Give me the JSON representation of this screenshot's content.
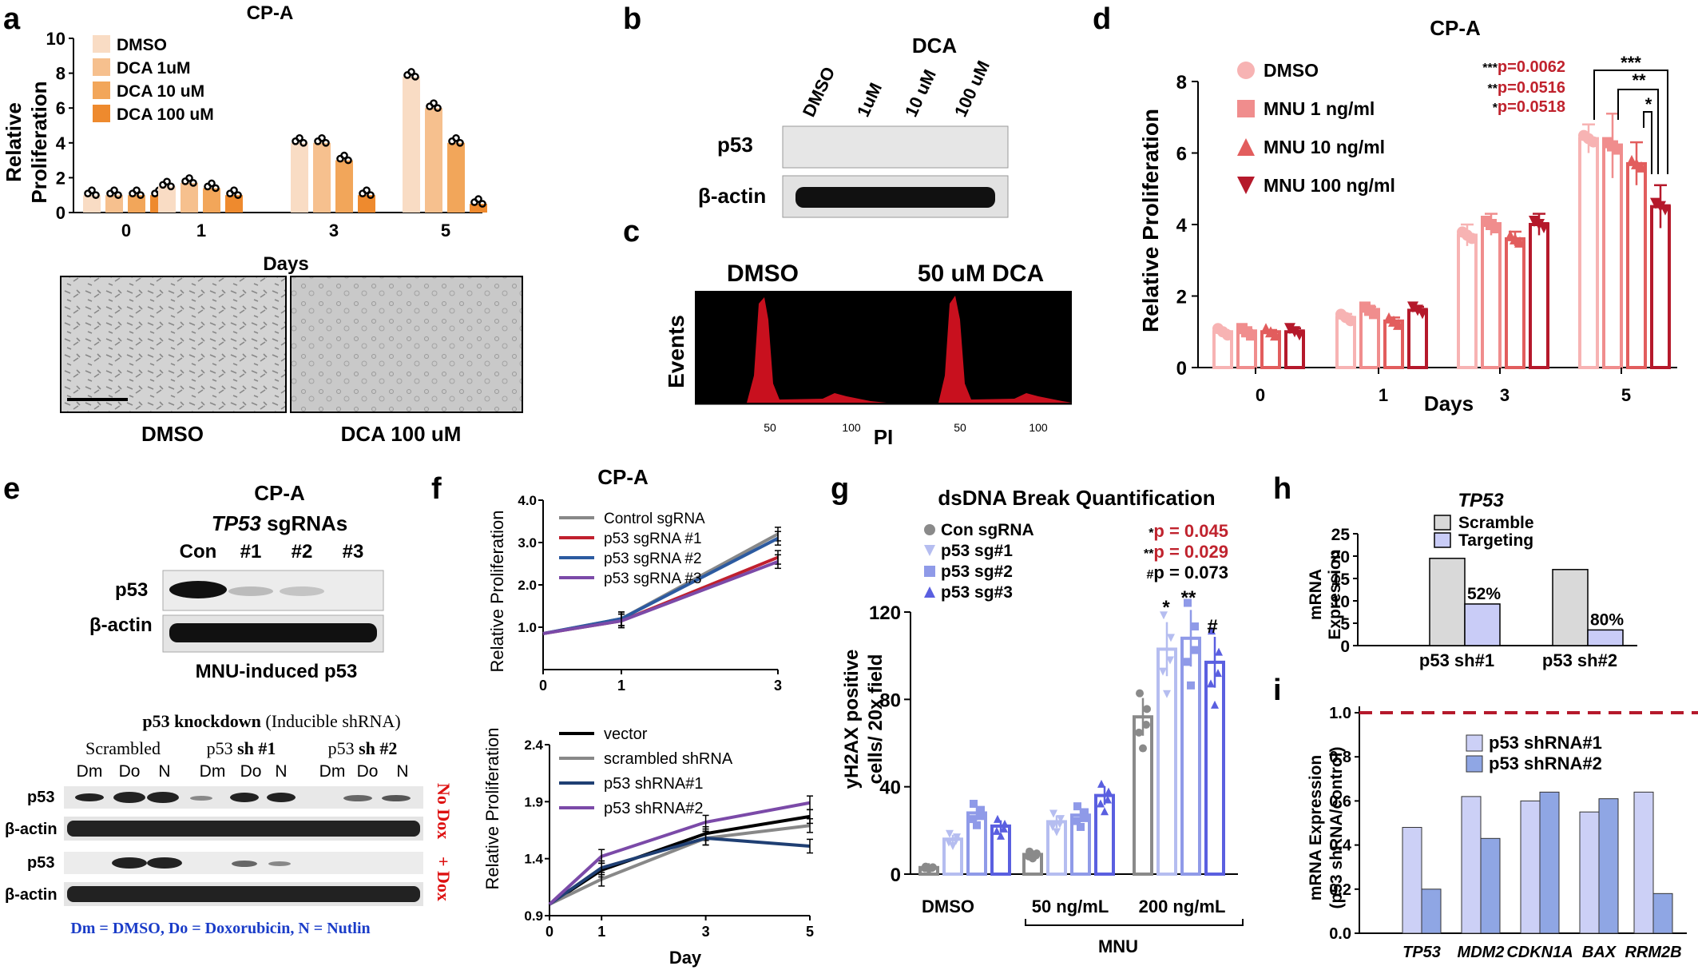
{
  "colors": {
    "dmso": "#f9dcc4",
    "dca1": "#f6c08e",
    "dca10": "#f2a65a",
    "dca100": "#ee8a2e",
    "mnu0": "#f7b3b3",
    "mnu1": "#f08d8d",
    "mnu10": "#e25d5d",
    "mnu100": "#b5192b",
    "sig": "#c0232e",
    "blue_text": "#1a3cc8",
    "red_text": "#d11"
  },
  "panel_letters": [
    "a",
    "b",
    "c",
    "d",
    "e",
    "f",
    "g",
    "h",
    "i"
  ],
  "a": {
    "title": "CP-A",
    "ylabel_1": "Relative",
    "ylabel_2": "Proliferation",
    "xlabel": "Days",
    "image_labels": [
      "DMSO",
      "DCA 100 uM"
    ]
  },
  "b": {
    "title": "DCA",
    "lanes": [
      "DMSO",
      "1uM",
      "10 uM",
      "100 uM"
    ],
    "rows": [
      "p53",
      "β-actin"
    ]
  },
  "c": {
    "panels": [
      "DMSO",
      "50 uM DCA"
    ],
    "ylabel": "Events",
    "xlabel": "PI",
    "ticks": [
      "50",
      "100"
    ]
  },
  "d": {
    "title": "CP-A",
    "ylabel": "Relative Proliferation",
    "xlabel": "Days",
    "pvals": [
      {
        "star": "***",
        "p": "p=0.0062"
      },
      {
        "star": "**",
        "p": "p=0.0516"
      },
      {
        "star": "*",
        "p": "p=0.0518"
      }
    ],
    "brackets": [
      "***",
      "**",
      "*"
    ]
  },
  "e": {
    "title": "CP-A",
    "subtitle_italic": "TP53",
    "subtitle_rest": " sgRNAs",
    "lanes": [
      "Con",
      "#1",
      "#2",
      "#3"
    ],
    "rows": [
      "p53",
      "β-actin"
    ],
    "caption": "MNU-induced p53",
    "kd_title_bold1": "p53 knockdown",
    "kd_title_rest": " (Inducible shRNA)",
    "groups": [
      {
        "a": "Scrambled",
        "b": ""
      },
      {
        "a": "p53 ",
        "b": "sh #1"
      },
      {
        "a": "p53 ",
        "b": "sh #2"
      }
    ],
    "lanes2": [
      "Dm",
      "Do",
      "N",
      "Dm",
      "Do",
      "N",
      "Dm",
      "Do",
      "N"
    ],
    "rows2": [
      "p53",
      "β-actin",
      "p53",
      "β-actin"
    ],
    "side_labels": [
      "No Dox",
      "+ Dox"
    ],
    "footer": "Dm = DMSO, Do = Doxorubicin, N = Nutlin"
  },
  "f": {
    "title": "CP-A",
    "ylabel": "Relative Proliferation",
    "xlabel": "Day"
  },
  "g": {
    "title": "dsDNA Break Quantification",
    "ylabel_1": "yH2AX positive",
    "ylabel_2": "cells/ 20x field",
    "pvals": [
      {
        "star": "*",
        "p": "p = 0.045",
        "red": true
      },
      {
        "star": "**",
        "p": "p = 0.029",
        "red": true
      },
      {
        "star": "#",
        "p": "p = 0.073",
        "red": false
      }
    ],
    "group_labels": [
      "DMSO",
      "50 ng/mL",
      "200 ng/mL"
    ],
    "mnu_label": "MNU",
    "sig_marks": [
      "*",
      "**",
      "#"
    ]
  },
  "h": {
    "title": "TP53",
    "ylabel_1": "mRNA",
    "ylabel_2": "Expression"
  },
  "i": {
    "ylabel_1": "mRNA Expression",
    "ylabel_2": "(p53 shRNA/control)"
  },
  "chart_data": [
    {
      "id": "a",
      "type": "bar",
      "categories": [
        "0",
        "1",
        "3",
        "5"
      ],
      "xlabel": "Days",
      "ylabel": "Relative Proliferation",
      "ylim": [
        0,
        10
      ],
      "yticks": [
        0,
        2,
        4,
        6,
        8,
        10
      ],
      "series": [
        {
          "name": "DMSO",
          "values": [
            1,
            1.5,
            4,
            7.8
          ]
        },
        {
          "name": "DCA 1uM",
          "values": [
            1,
            1.7,
            4,
            6
          ]
        },
        {
          "name": "DCA 10 uM",
          "values": [
            1,
            1.4,
            3,
            4
          ]
        },
        {
          "name": "DCA 100 uM",
          "values": [
            1,
            1,
            1,
            0.5
          ]
        }
      ]
    },
    {
      "id": "d",
      "type": "bar",
      "categories": [
        "0",
        "1",
        "3",
        "5"
      ],
      "xlabel": "Days",
      "ylabel": "Relative Proliferation",
      "ylim": [
        0,
        8
      ],
      "yticks": [
        0,
        2,
        4,
        6,
        8
      ],
      "series": [
        {
          "name": "DMSO",
          "values": [
            1,
            1.4,
            3.7,
            6.4
          ],
          "err": [
            0.05,
            0.1,
            0.3,
            0.4
          ]
        },
        {
          "name": "MNU 1 ng/ml",
          "values": [
            1,
            1.6,
            4,
            6.2
          ],
          "err": [
            0.05,
            0.1,
            0.3,
            0.9
          ]
        },
        {
          "name": "MNU 10 ng/ml",
          "values": [
            1,
            1.3,
            3.6,
            5.7
          ],
          "err": [
            0.05,
            0.1,
            0.2,
            0.6
          ]
        },
        {
          "name": "MNU 100 ng/ml",
          "values": [
            1,
            1.6,
            4,
            4.5
          ],
          "err": [
            0.1,
            0.1,
            0.3,
            0.6
          ]
        }
      ]
    },
    {
      "id": "f_top",
      "type": "line",
      "x": [
        0,
        1,
        3
      ],
      "xlabel": "",
      "ylabel": "Relative Proliferation",
      "ylim": [
        0,
        4
      ],
      "yticks": [
        "1.0",
        "2.0",
        "3.0",
        "4.0"
      ],
      "xticks": [
        0,
        1,
        3
      ],
      "series": [
        {
          "name": "Control sgRNA",
          "values": [
            0.85,
            1.2,
            3.2
          ],
          "color": "#888888"
        },
        {
          "name": "p53 sgRNA #1",
          "values": [
            0.85,
            1.15,
            2.65
          ],
          "color": "#c0202e"
        },
        {
          "name": "p53 sgRNA #2",
          "values": [
            0.85,
            1.2,
            3.1
          ],
          "color": "#2c5aa0"
        },
        {
          "name": "p53 sgRNA #3",
          "values": [
            0.85,
            1.15,
            2.55
          ],
          "color": "#7b4aa8"
        }
      ]
    },
    {
      "id": "f_bottom",
      "type": "line",
      "x": [
        0,
        1,
        3,
        5
      ],
      "xlabel": "Day",
      "ylabel": "Relative Proliferation",
      "ylim": [
        0.9,
        2.4
      ],
      "yticks": [
        "0.9",
        "1.4",
        "1.9",
        "2.4"
      ],
      "xticks": [
        0,
        1,
        3,
        5
      ],
      "series": [
        {
          "name": "vector",
          "values": [
            1.0,
            1.3,
            1.62,
            1.77
          ],
          "color": "#000000"
        },
        {
          "name": "scrambled shRNA",
          "values": [
            1.0,
            1.22,
            1.58,
            1.69
          ],
          "color": "#888888"
        },
        {
          "name": "p53 shRNA#1",
          "values": [
            1.0,
            1.32,
            1.58,
            1.51
          ],
          "color": "#1f3f73"
        },
        {
          "name": "p53 shRNA#2",
          "values": [
            1.0,
            1.42,
            1.72,
            1.89
          ],
          "color": "#7b4aa8"
        }
      ]
    },
    {
      "id": "g",
      "type": "bar",
      "categories": [
        "DMSO",
        "50 ng/mL",
        "200 ng/mL"
      ],
      "ylabel": "yH2AX positive cells/ 20x field",
      "ylim": [
        0,
        120
      ],
      "yticks": [
        0,
        40,
        80,
        120
      ],
      "series": [
        {
          "name": "Con sgRNA",
          "values": [
            3,
            9,
            72
          ]
        },
        {
          "name": "p53 sg#1",
          "values": [
            16,
            24,
            103
          ]
        },
        {
          "name": "p53 sg#2",
          "values": [
            28,
            27,
            108
          ]
        },
        {
          "name": "p53 sg#3",
          "values": [
            22,
            36,
            97
          ]
        }
      ]
    },
    {
      "id": "h",
      "type": "bar",
      "title": "TP53",
      "categories": [
        "p53 sh#1",
        "p53 sh#2"
      ],
      "ylabel": "mRNA Expression",
      "ylim": [
        0,
        25
      ],
      "yticks": [
        0,
        5,
        10,
        15,
        20,
        25
      ],
      "series": [
        {
          "name": "Scramble",
          "values": [
            19.5,
            17
          ]
        },
        {
          "name": "Targeting",
          "values": [
            9.3,
            3.5
          ]
        }
      ],
      "annotations": [
        "52%",
        "80%"
      ]
    },
    {
      "id": "i",
      "type": "bar",
      "categories": [
        "TP53",
        "MDM2",
        "CDKN1A",
        "BAX",
        "RRM2B"
      ],
      "ylabel": "mRNA Expression (p53 shRNA/control)",
      "ylim": [
        0,
        1.0
      ],
      "yticks": [
        "0.0",
        "0.2",
        "0.4",
        "0.6",
        "0.8",
        "1.0"
      ],
      "reference_line": 1.0,
      "series": [
        {
          "name": "p53 shRNA#1",
          "values": [
            0.48,
            0.62,
            0.6,
            0.55,
            0.64
          ]
        },
        {
          "name": "p53 shRNA#2",
          "values": [
            0.2,
            0.43,
            0.64,
            0.61,
            0.18
          ]
        }
      ]
    }
  ]
}
